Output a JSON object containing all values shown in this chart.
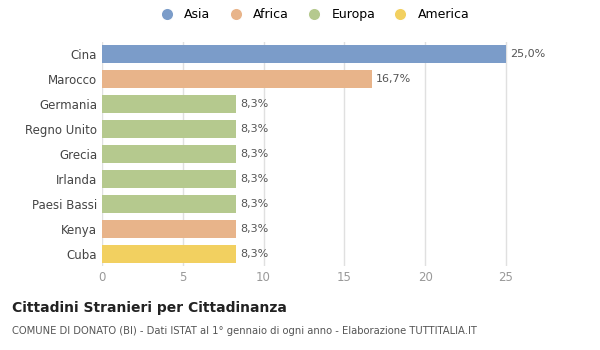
{
  "categories": [
    "Cina",
    "Marocco",
    "Germania",
    "Regno Unito",
    "Grecia",
    "Irlanda",
    "Paesi Bassi",
    "Kenya",
    "Cuba"
  ],
  "values": [
    25.0,
    16.7,
    8.3,
    8.3,
    8.3,
    8.3,
    8.3,
    8.3,
    8.3
  ],
  "labels": [
    "25,0%",
    "16,7%",
    "8,3%",
    "8,3%",
    "8,3%",
    "8,3%",
    "8,3%",
    "8,3%",
    "8,3%"
  ],
  "colors": [
    "#7b9cc9",
    "#e8b48a",
    "#b5c98e",
    "#b5c98e",
    "#b5c98e",
    "#b5c98e",
    "#b5c98e",
    "#e8b48a",
    "#f2d060"
  ],
  "legend_labels": [
    "Asia",
    "Africa",
    "Europa",
    "America"
  ],
  "legend_colors": [
    "#7b9cc9",
    "#e8b48a",
    "#b5c98e",
    "#f2d060"
  ],
  "title": "Cittadini Stranieri per Cittadinanza",
  "subtitle": "COMUNE DI DONATO (BI) - Dati ISTAT al 1° gennaio di ogni anno - Elaborazione TUTTITALIA.IT",
  "xlim": [
    0,
    26
  ],
  "xticks": [
    0,
    5,
    10,
    15,
    20,
    25
  ],
  "background_color": "#ffffff",
  "grid_color": "#e0e0e0",
  "label_color": "#555555",
  "tick_color": "#999999"
}
